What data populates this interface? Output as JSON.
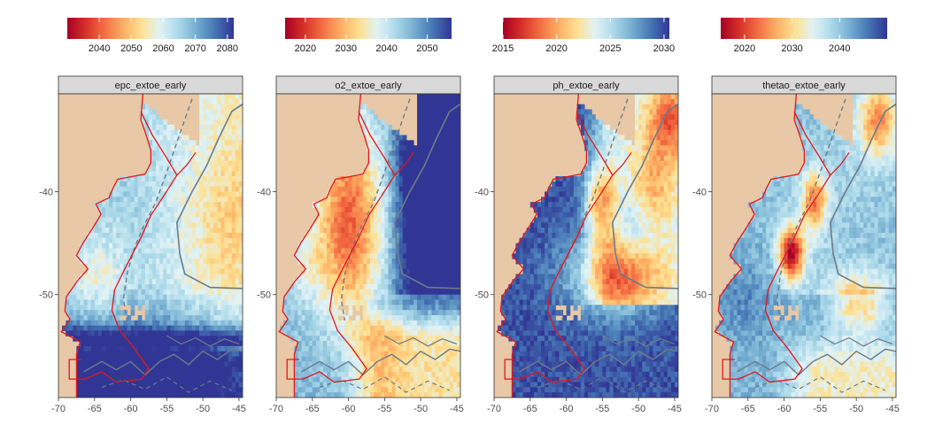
{
  "chart_data": [
    {
      "type": "heatmap",
      "title": "epc_extoe_early",
      "colorbar": {
        "ticks": [
          "2040",
          "2050",
          "2060",
          "2070",
          "2080"
        ],
        "tick_values": [
          2040,
          2050,
          2060,
          2070,
          2080
        ],
        "range": [
          2030,
          2082
        ]
      },
      "x_ticks": [
        "-70",
        "-65",
        "-60",
        "-55",
        "-50",
        "-45"
      ],
      "x_values": [
        -70,
        -65,
        -60,
        -55,
        -50,
        -45
      ],
      "y_ticks": [
        "-40",
        "-50"
      ],
      "y_values": [
        -40,
        -50
      ],
      "xlim": [
        -70,
        -44.5
      ],
      "ylim": [
        -60,
        -30.5
      ],
      "pattern": "epc"
    },
    {
      "type": "heatmap",
      "title": "o2_extoe_early",
      "colorbar": {
        "ticks": [
          "2020",
          "2030",
          "2040",
          "2050"
        ],
        "tick_values": [
          2020,
          2030,
          2040,
          2050
        ],
        "range": [
          2015,
          2056
        ]
      },
      "x_ticks": [
        "-70",
        "-65",
        "-60",
        "-55",
        "-50",
        "-45"
      ],
      "x_values": [
        -70,
        -65,
        -60,
        -55,
        -50,
        -45
      ],
      "y_ticks": [
        "-40",
        "-50"
      ],
      "y_values": [
        -40,
        -50
      ],
      "xlim": [
        -70,
        -44.5
      ],
      "ylim": [
        -60,
        -30.5
      ],
      "pattern": "o2"
    },
    {
      "type": "heatmap",
      "title": "ph_extoe_early",
      "colorbar": {
        "ticks": [
          "2015",
          "2020",
          "2025",
          "2030"
        ],
        "tick_values": [
          2015,
          2020,
          2025,
          2030
        ],
        "range": [
          2015,
          2030.5
        ]
      },
      "x_ticks": [
        "-70",
        "-65",
        "-60",
        "-55",
        "-50",
        "-45"
      ],
      "x_values": [
        -70,
        -65,
        -60,
        -55,
        -50,
        -45
      ],
      "y_ticks": [
        "-40",
        "-50"
      ],
      "y_values": [
        -40,
        -50
      ],
      "xlim": [
        -70,
        -44.5
      ],
      "ylim": [
        -60,
        -30.5
      ],
      "pattern": "ph"
    },
    {
      "type": "heatmap",
      "title": "thetao_extoe_early",
      "colorbar": {
        "ticks": [
          "2020",
          "2030",
          "2040"
        ],
        "tick_values": [
          2020,
          2030,
          2040
        ],
        "range": [
          2015,
          2050
        ]
      },
      "x_ticks": [
        "-70",
        "-65",
        "-60",
        "-55",
        "-50",
        "-45"
      ],
      "x_values": [
        -70,
        -65,
        -60,
        -55,
        -50,
        -45
      ],
      "y_ticks": [
        "-40",
        "-50"
      ],
      "y_values": [
        -40,
        -50
      ],
      "xlim": [
        -70,
        -44.5
      ],
      "ylim": [
        -60,
        -30.5
      ],
      "pattern": "thetao"
    }
  ],
  "colors": {
    "land": "#e8c8a6",
    "strip_fill": "#d9d9d9",
    "eez_line": "#e3161c",
    "contour_line": "#6e7b88",
    "palette": [
      "#a50026",
      "#d73027",
      "#f46d43",
      "#fdae61",
      "#fee090",
      "#e0f3f8",
      "#abd9e9",
      "#74add1",
      "#4575b4",
      "#313695"
    ]
  }
}
